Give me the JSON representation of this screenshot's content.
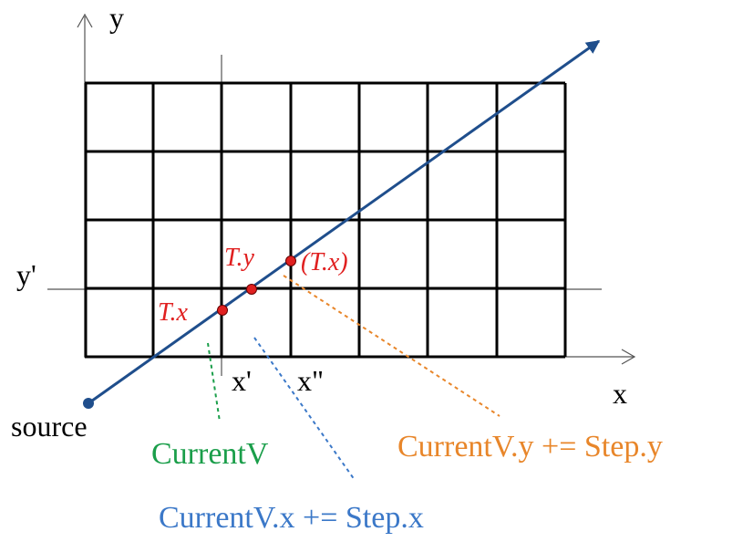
{
  "diagram": {
    "axes": {
      "x_label": "x",
      "y_label": "y"
    },
    "tick_labels": {
      "y_prime": "y'",
      "x_prime": "x'",
      "x_double_prime": "x\""
    },
    "grid": {
      "columns": 7,
      "rows": 4
    },
    "source_label": "source",
    "points": {
      "tx": "T.x",
      "ty": "T.y",
      "tx_paren": "(T.x)"
    },
    "annotations": {
      "current_v": "CurrentV",
      "current_v_x": "CurrentV.x += Step.x",
      "current_v_y": "CurrentV.y += Step.y"
    },
    "colors": {
      "ray": "#1f4e8c",
      "point": "#e02020",
      "green": "#1a9e4a",
      "blue": "#3b78c8",
      "orange": "#e8862a"
    }
  }
}
